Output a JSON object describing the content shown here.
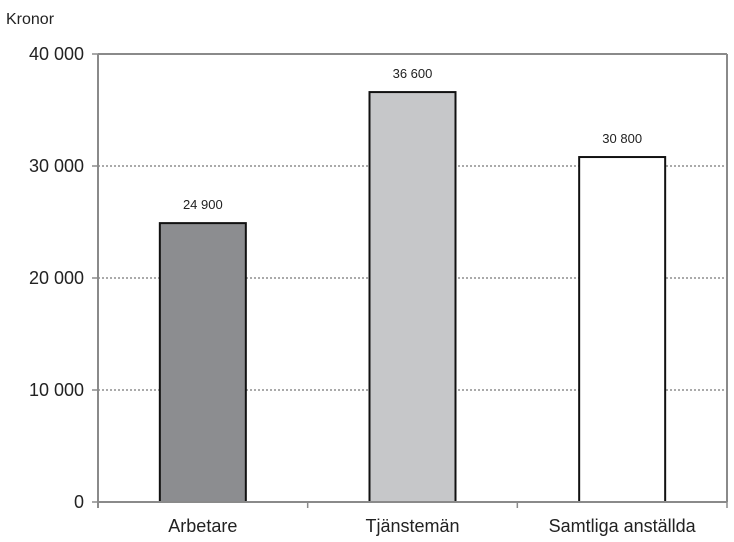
{
  "chart_data": {
    "type": "bar",
    "ylabel": "Kronor",
    "categories": [
      "Arbetare",
      "Tjänstemän",
      "Samtliga anställda"
    ],
    "values": [
      24900,
      36600,
      30800
    ],
    "data_labels": [
      "24 900",
      "36 600",
      "30 800"
    ],
    "ylim": [
      0,
      40000
    ],
    "yticks": [
      0,
      10000,
      20000,
      30000,
      40000
    ],
    "ytick_labels": [
      "0",
      "10 000",
      "20 000",
      "30 000",
      "40 000"
    ],
    "grid": "horizontal dotted",
    "bar_colors": [
      "#8c8d90",
      "#c6c7c9",
      "#ffffff"
    ],
    "bar_edge_color": "#111111",
    "axis_color": "#8a8a8a"
  }
}
